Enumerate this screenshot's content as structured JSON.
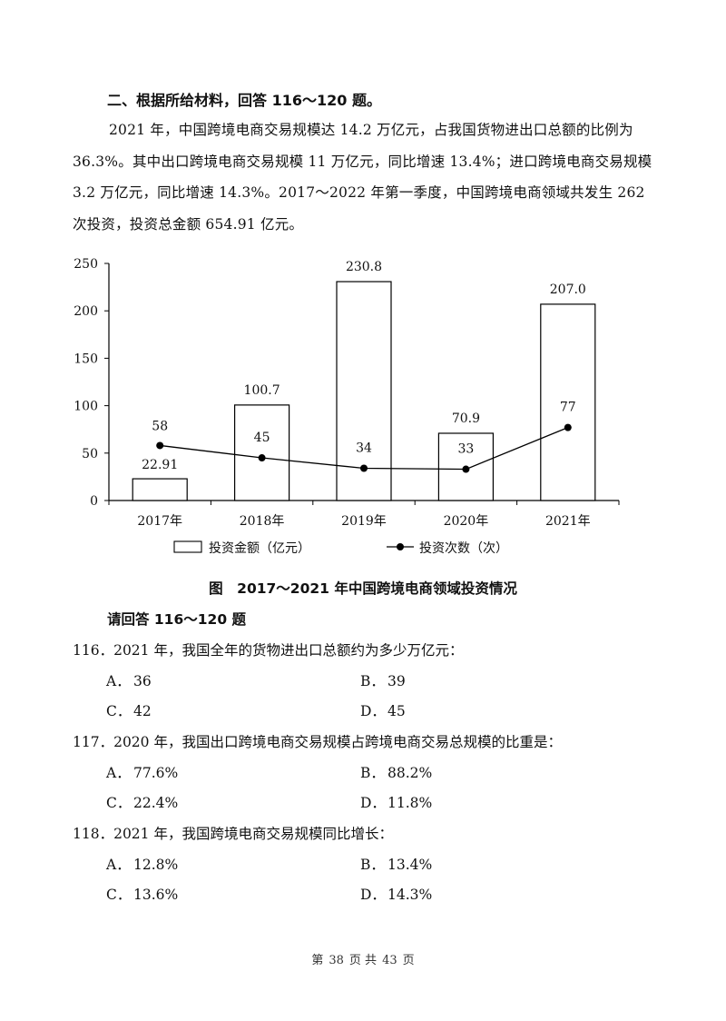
{
  "section_title": "二、根据所给材料，回答 116～120 题。",
  "paragraph": "2021 年，中国跨境电商交易规模达 14.2 万亿元，占我国货物进出口总额的比例为 36.3%。其中出口跨境电商交易规模 11 万亿元，同比增速 13.4%；进口跨境电商交易规模 3.2 万亿元，同比增速 14.3%。2017～2022 年第一季度，中国跨境电商领域共发生 262 次投资，投资总金额 654.91 亿元。",
  "chart_data": {
    "type": "bar",
    "categories": [
      "2017年",
      "2018年",
      "2019年",
      "2020年",
      "2021年"
    ],
    "series": [
      {
        "name": "投资金额（亿元）",
        "type": "bar",
        "values": [
          22.91,
          100.7,
          230.8,
          70.9,
          207.0
        ],
        "labels": [
          "22.91",
          "100.7",
          "230.8",
          "70.9",
          "207.0"
        ]
      },
      {
        "name": "投资次数（次）",
        "type": "line",
        "values": [
          58,
          45,
          34,
          33,
          77
        ],
        "labels": [
          "58",
          "45",
          "34",
          "33",
          "77"
        ]
      }
    ],
    "ylim": [
      0,
      250
    ],
    "yticks": [
      "0",
      "50",
      "100",
      "150",
      "200",
      "250"
    ],
    "legend": "bottom",
    "grid": false
  },
  "figure_caption": "图　2017～2021 年中国跨境电商领域投资情况",
  "ask": "请回答 116～120 题",
  "questions": [
    {
      "stem": "116．2021 年，我国全年的货物进出口总额约为多少万亿元：",
      "options": [
        {
          "label": "A．",
          "text": "36"
        },
        {
          "label": "B．",
          "text": "39"
        },
        {
          "label": "C．",
          "text": "42"
        },
        {
          "label": "D．",
          "text": "45"
        }
      ]
    },
    {
      "stem": "117．2020 年，我国出口跨境电商交易规模占跨境电商交易总规模的比重是：",
      "options": [
        {
          "label": "A．",
          "text": "77.6%"
        },
        {
          "label": "B．",
          "text": "88.2%"
        },
        {
          "label": "C．",
          "text": "22.4%"
        },
        {
          "label": "D．",
          "text": "11.8%"
        }
      ]
    },
    {
      "stem": "118．2021 年，我国跨境电商交易规模同比增长：",
      "options": [
        {
          "label": "A．",
          "text": "12.8%"
        },
        {
          "label": "B．",
          "text": "13.4%"
        },
        {
          "label": "C．",
          "text": "13.6%"
        },
        {
          "label": "D．",
          "text": "14.3%"
        }
      ]
    }
  ],
  "footer": {
    "prefix": "第",
    "page": "38",
    "mid": "页 共",
    "total": "43",
    "suffix": "页"
  }
}
